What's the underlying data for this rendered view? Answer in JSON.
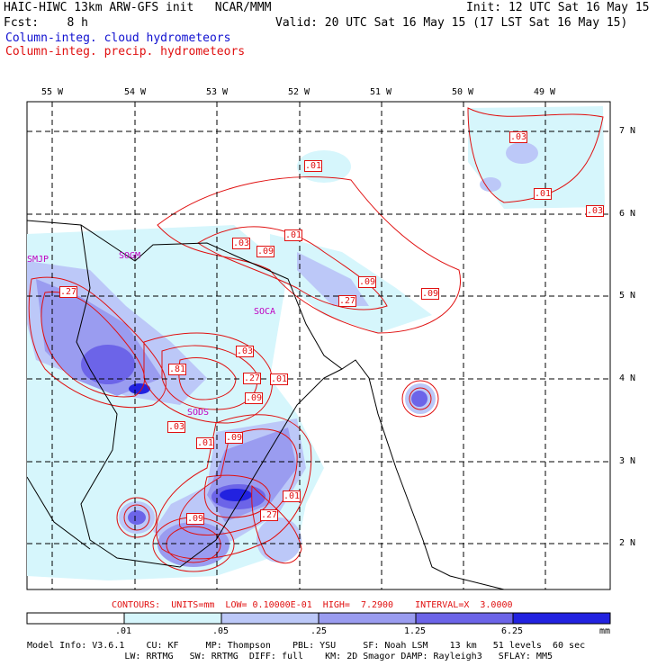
{
  "header": {
    "model": "HAIC-HIWC 13km ARW-GFS init   NCAR/MMM",
    "init": "Init: 12 UTC Sat 16 May 15",
    "fcst": "Fcst:    8 h",
    "valid": "Valid: 20 UTC Sat 16 May 15 (17 LST Sat 16 May 15)",
    "legend_cloud": "Column-integ. cloud hydrometeors",
    "legend_precip": "Column-integ. precip. hydrometeors",
    "legend_cloud_color": "#1010d0",
    "legend_precip_color": "#e01010"
  },
  "axes": {
    "lon_labels": [
      "55 W",
      "54 W",
      "53 W",
      "52 W",
      "51 W",
      "50 W",
      "49 W"
    ],
    "lat_labels": [
      "7 N",
      "6 N",
      "5 N",
      "4 N",
      "3 N",
      "2 N"
    ]
  },
  "stations": [
    "SMJP",
    "SOGM",
    "SOCA",
    "SODS"
  ],
  "contour_labels": [
    ".01",
    ".03",
    ".01",
    ".09",
    ".09",
    ".03",
    ".01",
    ".27",
    ".27",
    ".03",
    ".81",
    ".27",
    ".01",
    ".09",
    ".03",
    ".01",
    ".09",
    ".01",
    ".27",
    ".09",
    ".03"
  ],
  "contour_info": "CONTOURS:  UNITS=mm  LOW= 0.10000E-01  HIGH=  7.2900    INTERVAL=X  3.0000",
  "colorbar": {
    "labels": [
      ".01",
      ".05",
      ".25",
      "1.25",
      "6.25",
      "mm"
    ],
    "colors": [
      "#ffffff",
      "#d6f6fc",
      "#bcc8f8",
      "#9a9cf0",
      "#6c64e8",
      "#2222e0"
    ]
  },
  "model_info": {
    "line1": "Model Info: V3.6.1    CU: KF     MP: Thompson    PBL: YSU     SF: Noah LSM    13 km   51 levels  60 sec",
    "line2": "                  LW: RRTMG   SW: RRTMG  DIFF: full    KM: 2D Smagor DAMP: Rayleigh3   SFLAY: MM5"
  }
}
